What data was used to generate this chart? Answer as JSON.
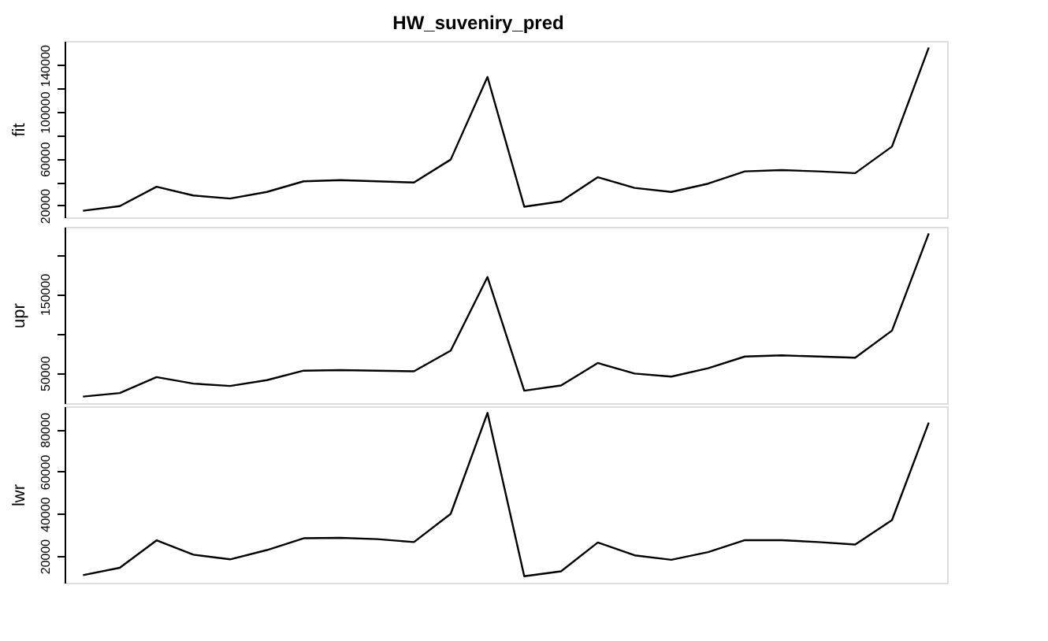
{
  "chart_data": [
    {
      "type": "line",
      "title": "HW_suveniry_pred",
      "ylabel": "fit",
      "categories": [
        null,
        null,
        null,
        null,
        null,
        null,
        null,
        null,
        null,
        null,
        null,
        null,
        null,
        null,
        null,
        null,
        null,
        null,
        null,
        null,
        null,
        null,
        null,
        null
      ],
      "color": "#000000",
      "values": [
        15500,
        19500,
        36100,
        28600,
        26000,
        31600,
        40700,
        41700,
        40700,
        39700,
        59300,
        129900,
        19000,
        23500,
        44200,
        35100,
        31600,
        38700,
        49200,
        50300,
        49200,
        47700,
        70400,
        155100
      ],
      "ylim": [
        9900,
        160700
      ],
      "yticks": [
        20000,
        {
          "value": 40000,
          "label": null
        },
        60000,
        {
          "value": 80000,
          "label": null
        },
        100000,
        {
          "value": 120000,
          "label": null
        },
        140000
      ],
      "tick_labels": "y",
      "grid": false
    },
    {
      "type": "line",
      "ylabel": "upr",
      "categories": [
        null,
        null,
        null,
        null,
        null,
        null,
        null,
        null,
        null,
        null,
        null,
        null,
        null,
        null,
        null,
        null,
        null,
        null,
        null,
        null,
        null,
        null,
        null,
        null
      ],
      "color": "#000000",
      "values": [
        20100,
        24600,
        44800,
        36600,
        33600,
        41000,
        53000,
        53700,
        53000,
        52200,
        78400,
        171600,
        27600,
        34300,
        62700,
        49300,
        45500,
        56000,
        70900,
        72400,
        70900,
        69400,
        103700,
        226900
      ],
      "ylim": [
        11800,
        235200
      ],
      "yticks": [
        50000,
        {
          "value": 100000,
          "label": null
        },
        150000,
        {
          "value": 200000,
          "label": null
        }
      ],
      "tick_labels": "y",
      "grid": false
    },
    {
      "type": "line",
      "ylabel": "lwr",
      "categories": [
        null,
        null,
        null,
        null,
        null,
        null,
        null,
        null,
        null,
        null,
        null,
        null,
        null,
        null,
        null,
        null,
        null,
        null,
        null,
        null,
        null,
        null,
        null,
        null
      ],
      "color": "#000000",
      "values": [
        10900,
        14400,
        27400,
        20600,
        18400,
        22800,
        28400,
        28600,
        28000,
        26600,
        40000,
        87900,
        10400,
        12700,
        26400,
        20300,
        18200,
        21800,
        27500,
        27500,
        26600,
        25400,
        37000,
        83300
      ],
      "ylim": [
        7300,
        91000
      ],
      "yticks": [
        20000,
        40000,
        60000,
        80000
      ],
      "tick_labels": "y",
      "grid": false
    }
  ]
}
